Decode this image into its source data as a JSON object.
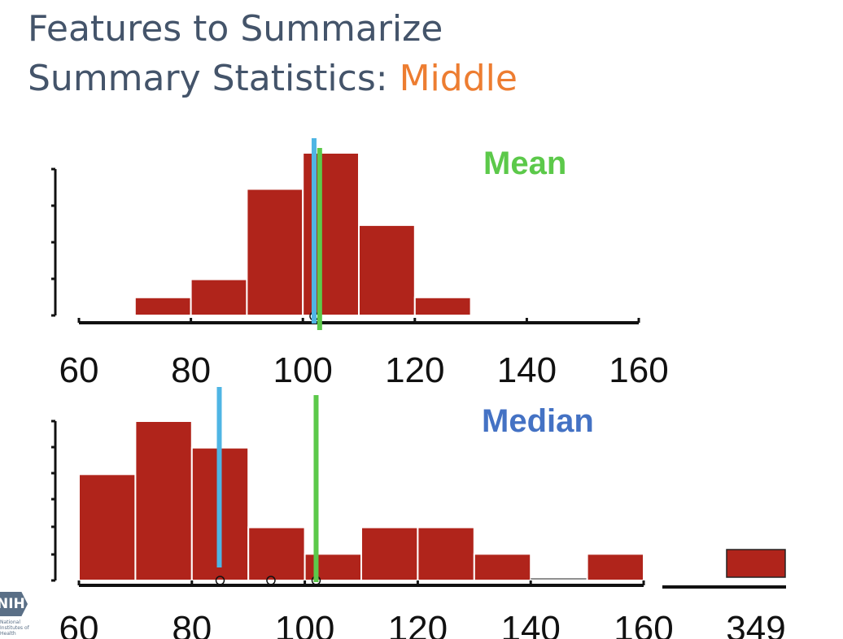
{
  "slide": {
    "title_line1": "Features to Summarize",
    "title_line2_prefix": "Summary Statistics: ",
    "title_line2_accent": "Middle",
    "colors": {
      "title": "#44546a",
      "accent": "#ed7d31",
      "bar": "#b0241b",
      "mean_line": "#5cc94a",
      "median_line": "#4fb5e4",
      "mean_label": "#5cc94a",
      "median_label": "#4472c4"
    }
  },
  "logo": {
    "text": "NIH",
    "sub": "National Institutes of Health"
  },
  "chart_data": [
    {
      "type": "bar",
      "label": "Mean",
      "bins": [
        [
          70,
          80
        ],
        [
          80,
          90
        ],
        [
          90,
          100
        ],
        [
          100,
          110
        ],
        [
          110,
          120
        ],
        [
          120,
          130
        ]
      ],
      "values": [
        1,
        2,
        7,
        9,
        5,
        1
      ],
      "x_ticks": [
        "60",
        "80",
        "100",
        "120",
        "140",
        "160"
      ],
      "x_tick_values": [
        60,
        80,
        100,
        120,
        140,
        160
      ],
      "xlim": [
        60,
        160
      ],
      "ylim": [
        0,
        9
      ],
      "mean": 103,
      "median": 102,
      "points": [
        102
      ]
    },
    {
      "type": "bar",
      "label": "Median",
      "bins": [
        [
          60,
          70
        ],
        [
          70,
          80
        ],
        [
          80,
          90
        ],
        [
          90,
          100
        ],
        [
          100,
          110
        ],
        [
          110,
          120
        ],
        [
          120,
          130
        ],
        [
          130,
          140
        ],
        [
          140,
          150
        ],
        [
          150,
          160
        ]
      ],
      "values": [
        4,
        6,
        5,
        2,
        1,
        2,
        2,
        1,
        0,
        1
      ],
      "outlier": {
        "x_label": "349",
        "value": 1
      },
      "x_ticks": [
        "60",
        "80",
        "100",
        "120",
        "140",
        "160",
        "349"
      ],
      "x_tick_values": [
        60,
        80,
        100,
        120,
        140,
        160
      ],
      "xlim": [
        60,
        160
      ],
      "ylim": [
        0,
        6
      ],
      "mean": 102,
      "median": 85,
      "points": [
        85,
        94,
        102
      ]
    }
  ]
}
